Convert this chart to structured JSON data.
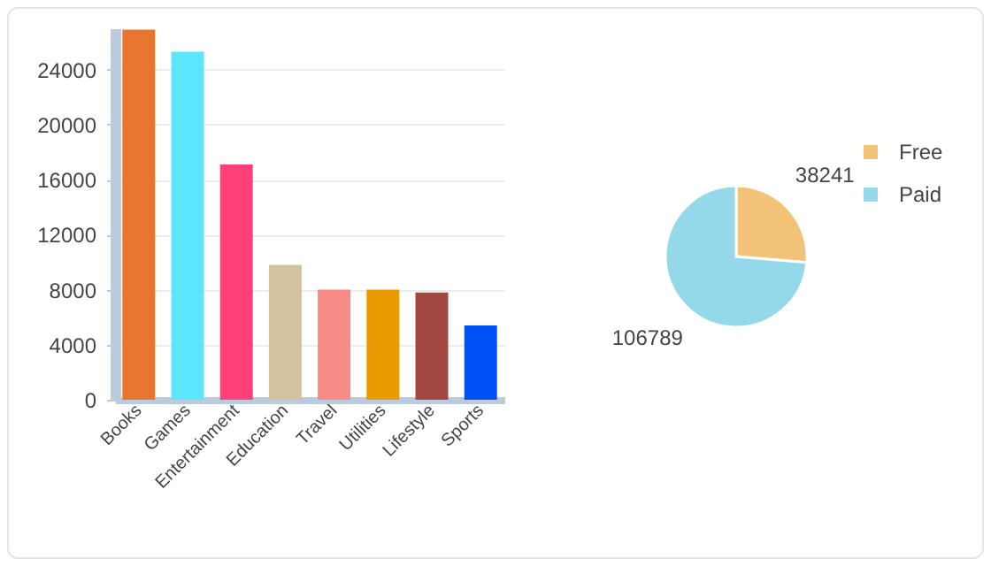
{
  "chart_data": [
    {
      "type": "bar",
      "categories": [
        "Books",
        "Games",
        "Entertainment",
        "Education",
        "Travel",
        "Utilities",
        "Lifestyle",
        "Sports"
      ],
      "values": [
        26900,
        25300,
        17100,
        9800,
        8000,
        8000,
        7800,
        5400
      ],
      "colors": [
        "#e8762f",
        "#5ce6fe",
        "#ff3f77",
        "#d4c19f",
        "#f88b85",
        "#e89b00",
        "#a34840",
        "#0050f8"
      ],
      "ylim": [
        0,
        27000
      ],
      "yticks": [
        0,
        4000,
        8000,
        12000,
        16000,
        20000,
        24000
      ],
      "grid": "y"
    },
    {
      "type": "pie",
      "categories": [
        "Free",
        "Paid"
      ],
      "values": [
        38241,
        106789
      ],
      "colors": [
        "#f2c276",
        "#93d9ea"
      ],
      "data_labels": true,
      "legend": "right"
    }
  ]
}
